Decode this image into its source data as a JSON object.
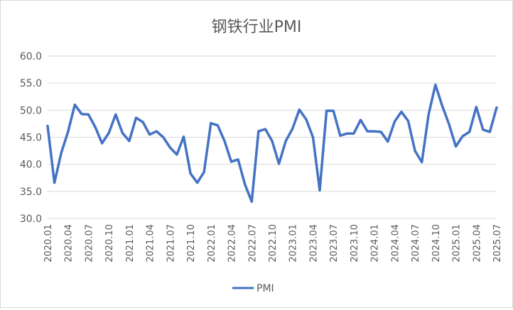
{
  "chart_data": {
    "type": "line",
    "title": "钢铁行业PMI",
    "xlabel": "",
    "ylabel": "",
    "ylim": [
      30.0,
      60.0
    ],
    "yticks": [
      "30.0",
      "35.0",
      "40.0",
      "45.0",
      "50.0",
      "55.0",
      "60.0"
    ],
    "x": [
      "2020.01",
      "2020.02",
      "2020.03",
      "2020.04",
      "2020.05",
      "2020.06",
      "2020.07",
      "2020.08",
      "2020.09",
      "2020.10",
      "2020.11",
      "2020.12",
      "2021.01",
      "2021.02",
      "2021.03",
      "2021.04",
      "2021.05",
      "2021.06",
      "2021.07",
      "2021.08",
      "2021.09",
      "2021.10",
      "2021.11",
      "2021.12",
      "2022.01",
      "2022.02",
      "2022.03",
      "2022.04",
      "2022.05",
      "2022.06",
      "2022.07",
      "2022.08",
      "2022.09",
      "2022.10",
      "2022.11",
      "2022.12",
      "2023.01",
      "2023.02",
      "2023.03",
      "2023.04",
      "2023.05",
      "2023.06",
      "2023.07",
      "2023.08",
      "2023.09",
      "2023.10",
      "2023.11",
      "2023.12",
      "2024.01",
      "2024.02",
      "2024.03",
      "2024.04",
      "2024.05",
      "2024.06",
      "2024.07",
      "2024.08",
      "2024.09",
      "2024.10",
      "2024.11",
      "2024.12",
      "2025.01",
      "2025.02",
      "2025.03",
      "2025.04",
      "2025.05",
      "2025.06",
      "2025.07"
    ],
    "xtick_labels": [
      "2020.01",
      "2020.04",
      "2020.07",
      "2020.10",
      "2021.01",
      "2021.04",
      "2021.07",
      "2021.10",
      "2022.01",
      "2022.04",
      "2022.07",
      "2022.10",
      "2023.01",
      "2023.04",
      "2023.07",
      "2023.10",
      "2024.01",
      "2024.04",
      "2024.07",
      "2024.10",
      "2025.01",
      "2025.04",
      "2025.07"
    ],
    "series": [
      {
        "name": "PMI",
        "color": "#4472c4",
        "values": [
          47.1,
          36.6,
          42.1,
          46.0,
          51.0,
          49.3,
          49.2,
          46.9,
          43.9,
          45.8,
          49.2,
          45.8,
          44.3,
          48.6,
          47.8,
          45.5,
          46.1,
          45.0,
          43.1,
          41.8,
          45.1,
          38.3,
          36.6,
          38.6,
          47.6,
          47.2,
          44.3,
          40.5,
          40.9,
          36.3,
          33.1,
          46.1,
          46.5,
          44.3,
          40.1,
          44.3,
          46.6,
          50.1,
          48.3,
          45.0,
          35.2,
          49.9,
          49.9,
          45.3,
          45.7,
          45.7,
          48.2,
          46.1,
          46.1,
          46.0,
          44.2,
          47.9,
          49.7,
          48.0,
          42.5,
          40.4,
          49.2,
          54.7,
          50.8,
          47.4,
          43.3,
          45.2,
          46.0,
          50.6,
          46.4,
          46.0,
          50.5
        ]
      }
    ],
    "legend": {
      "position": "bottom",
      "label": "PMI"
    },
    "grid": true
  }
}
